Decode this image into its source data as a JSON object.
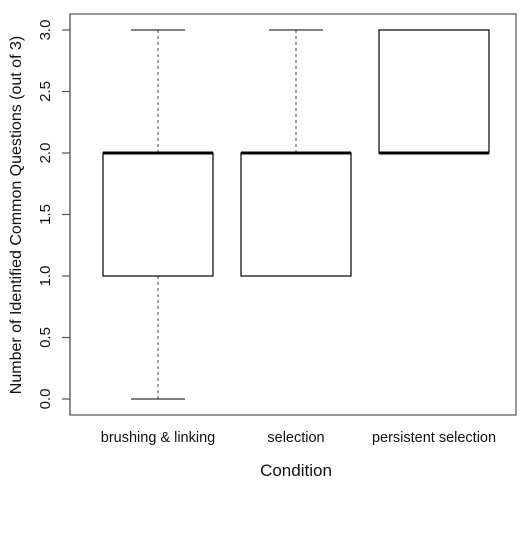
{
  "chart_data": {
    "type": "boxplot",
    "title": "",
    "xlabel": "Condition",
    "ylabel": "Number of Identified Common Questions (out of 3)",
    "ylim": [
      0,
      3
    ],
    "yticks": [
      "0.0",
      "0.5",
      "1.0",
      "1.5",
      "2.0",
      "2.5",
      "3.0"
    ],
    "grid": false,
    "categories": [
      "brushing & linking",
      "selection",
      "persistent selection"
    ],
    "boxes": [
      {
        "category": "brushing & linking",
        "min": 0,
        "q1": 1,
        "median": 2,
        "q3": 2,
        "max": 3
      },
      {
        "category": "selection",
        "min": 1,
        "q1": 1,
        "median": 2,
        "q3": 2,
        "max": 3
      },
      {
        "category": "persistent selection",
        "min": 2,
        "q1": 2,
        "median": 2,
        "q3": 3,
        "max": 3
      }
    ]
  },
  "colors": {
    "box_fill": "#ffffff",
    "stroke": "#000000",
    "whisker": "#444444",
    "frame": "#555555"
  }
}
